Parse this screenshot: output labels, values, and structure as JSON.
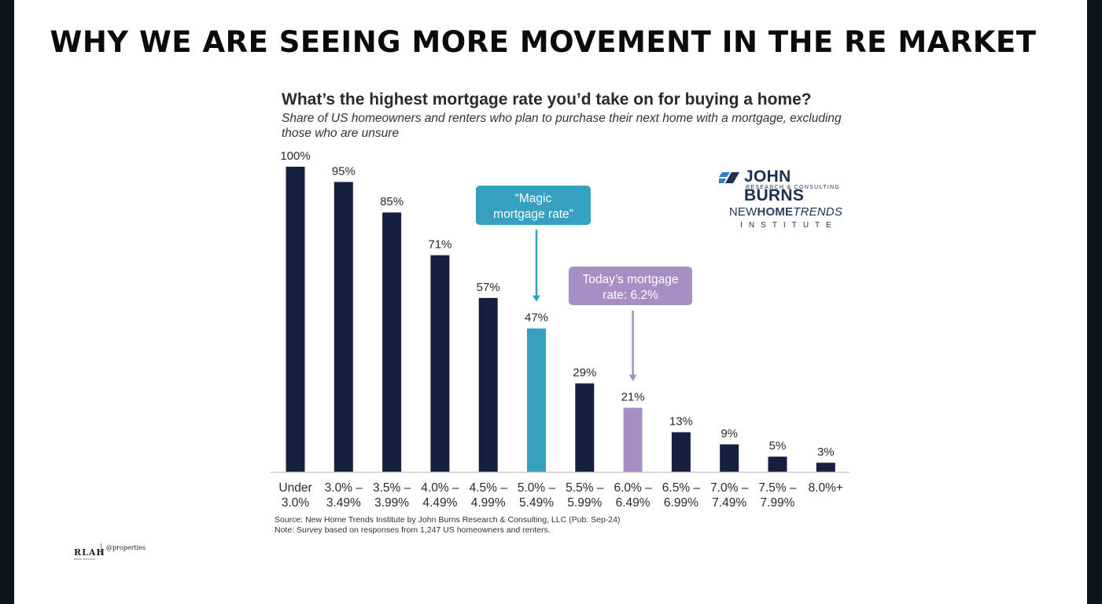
{
  "slide": {
    "headline": "WHY WE ARE SEEING MORE MOVEMENT IN THE RE MARKET"
  },
  "logos": {
    "john_burns": "JOHN BURNS",
    "john_burns_sub": "RESEARCH & CONSULTING",
    "nht_new": "NEW",
    "nht_home": "HOME",
    "nht_trends": "TRENDS",
    "nht_institute": "INSTITUTE",
    "footer_brand": "RLAH",
    "footer_brand_sub": "REAL ESTATE",
    "footer_partner": "@properties"
  },
  "source": {
    "line1": "Source: New Home Trends Institute by John Burns Research & Consulting, LLC (Pub: Sep-24)",
    "line2": "Note: Survey based on responses from 1,247 US homeowners and renters."
  },
  "colors": {
    "bar_default": "#152040",
    "bar_magic": "#36a0bf",
    "bar_today": "#a78fc4",
    "callout_magic": "#36a0bf",
    "callout_today": "#a78fc4"
  },
  "chart_data": {
    "type": "bar",
    "title": "What’s the highest mortgage rate you’d take on for buying a home?",
    "subtitle": "Share of US homeowners and renters who plan to purchase their next home with a mortgage, excluding those who are unsure",
    "categories": [
      [
        "Under",
        "3.0%"
      ],
      [
        "3.0% –",
        "3.49%"
      ],
      [
        "3.5% –",
        "3.99%"
      ],
      [
        "4.0% –",
        "4.49%"
      ],
      [
        "4.5% –",
        "4.99%"
      ],
      [
        "5.0% –",
        "5.49%"
      ],
      [
        "5.5% –",
        "5.99%"
      ],
      [
        "6.0% –",
        "6.49%"
      ],
      [
        "6.5% –",
        "6.99%"
      ],
      [
        "7.0% –",
        "7.49%"
      ],
      [
        "7.5% –",
        "7.99%"
      ],
      [
        "8.0%+",
        ""
      ]
    ],
    "values": [
      100,
      95,
      85,
      71,
      57,
      47,
      29,
      21,
      13,
      9,
      5,
      3
    ],
    "value_labels": [
      "100%",
      "95%",
      "85%",
      "71%",
      "57%",
      "47%",
      "29%",
      "21%",
      "13%",
      "9%",
      "5%",
      "3%"
    ],
    "highlights": {
      "magic": 5,
      "today": 7
    },
    "ylim": [
      0,
      100
    ],
    "annotations": [
      {
        "text": [
          "“Magic",
          "mortgage rate”"
        ],
        "target_index": 5,
        "style": "magic"
      },
      {
        "text": [
          "Today’s mortgage",
          "rate: 6.2%"
        ],
        "target_index": 7,
        "style": "today"
      }
    ],
    "grid": false,
    "legend": "none"
  }
}
